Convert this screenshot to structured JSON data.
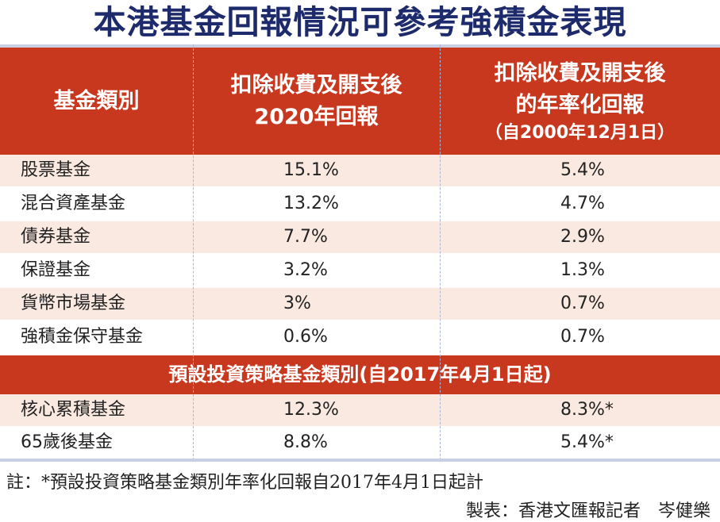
{
  "title": "本港基金回報情況可參考強積金表現",
  "header": {
    "col1": "基金類別",
    "col2_line1": "扣除收費及開支後",
    "col2_line2": "2020年回報",
    "col3_line1": "扣除收費及開支後",
    "col3_line2": "的年率化回報",
    "col3_line3": "（自2000年12月1日）"
  },
  "rows": [
    {
      "name": "股票基金",
      "ret2020": "15.1%",
      "annualized": "5.4%"
    },
    {
      "name": "混合資產基金",
      "ret2020": "13.2%",
      "annualized": "4.7%"
    },
    {
      "name": "債券基金",
      "ret2020": "7.7%",
      "annualized": "2.9%"
    },
    {
      "name": "保證基金",
      "ret2020": "3.2%",
      "annualized": "1.3%"
    },
    {
      "name": "貨幣市場基金",
      "ret2020": "3%",
      "annualized": "0.7%"
    },
    {
      "name": "強積金保守基金",
      "ret2020": "0.6%",
      "annualized": "0.7%"
    }
  ],
  "section": "預設投資策略基金類別(自2017年4月1日起)",
  "section_rows": [
    {
      "name": "核心累積基金",
      "ret2020": "12.3%",
      "annualized": "8.3%*"
    },
    {
      "name": "65歲後基金",
      "ret2020": "8.8%",
      "annualized": "5.4%*"
    }
  ],
  "note": "註：*預設投資策略基金類別年率化回報自2017年4月1日起計",
  "credit": "製表：香港文匯報記者　岑健樂",
  "colors": {
    "header": "#c8381f",
    "title": "#1d2a6b",
    "row_alt": "#fae9e0"
  }
}
